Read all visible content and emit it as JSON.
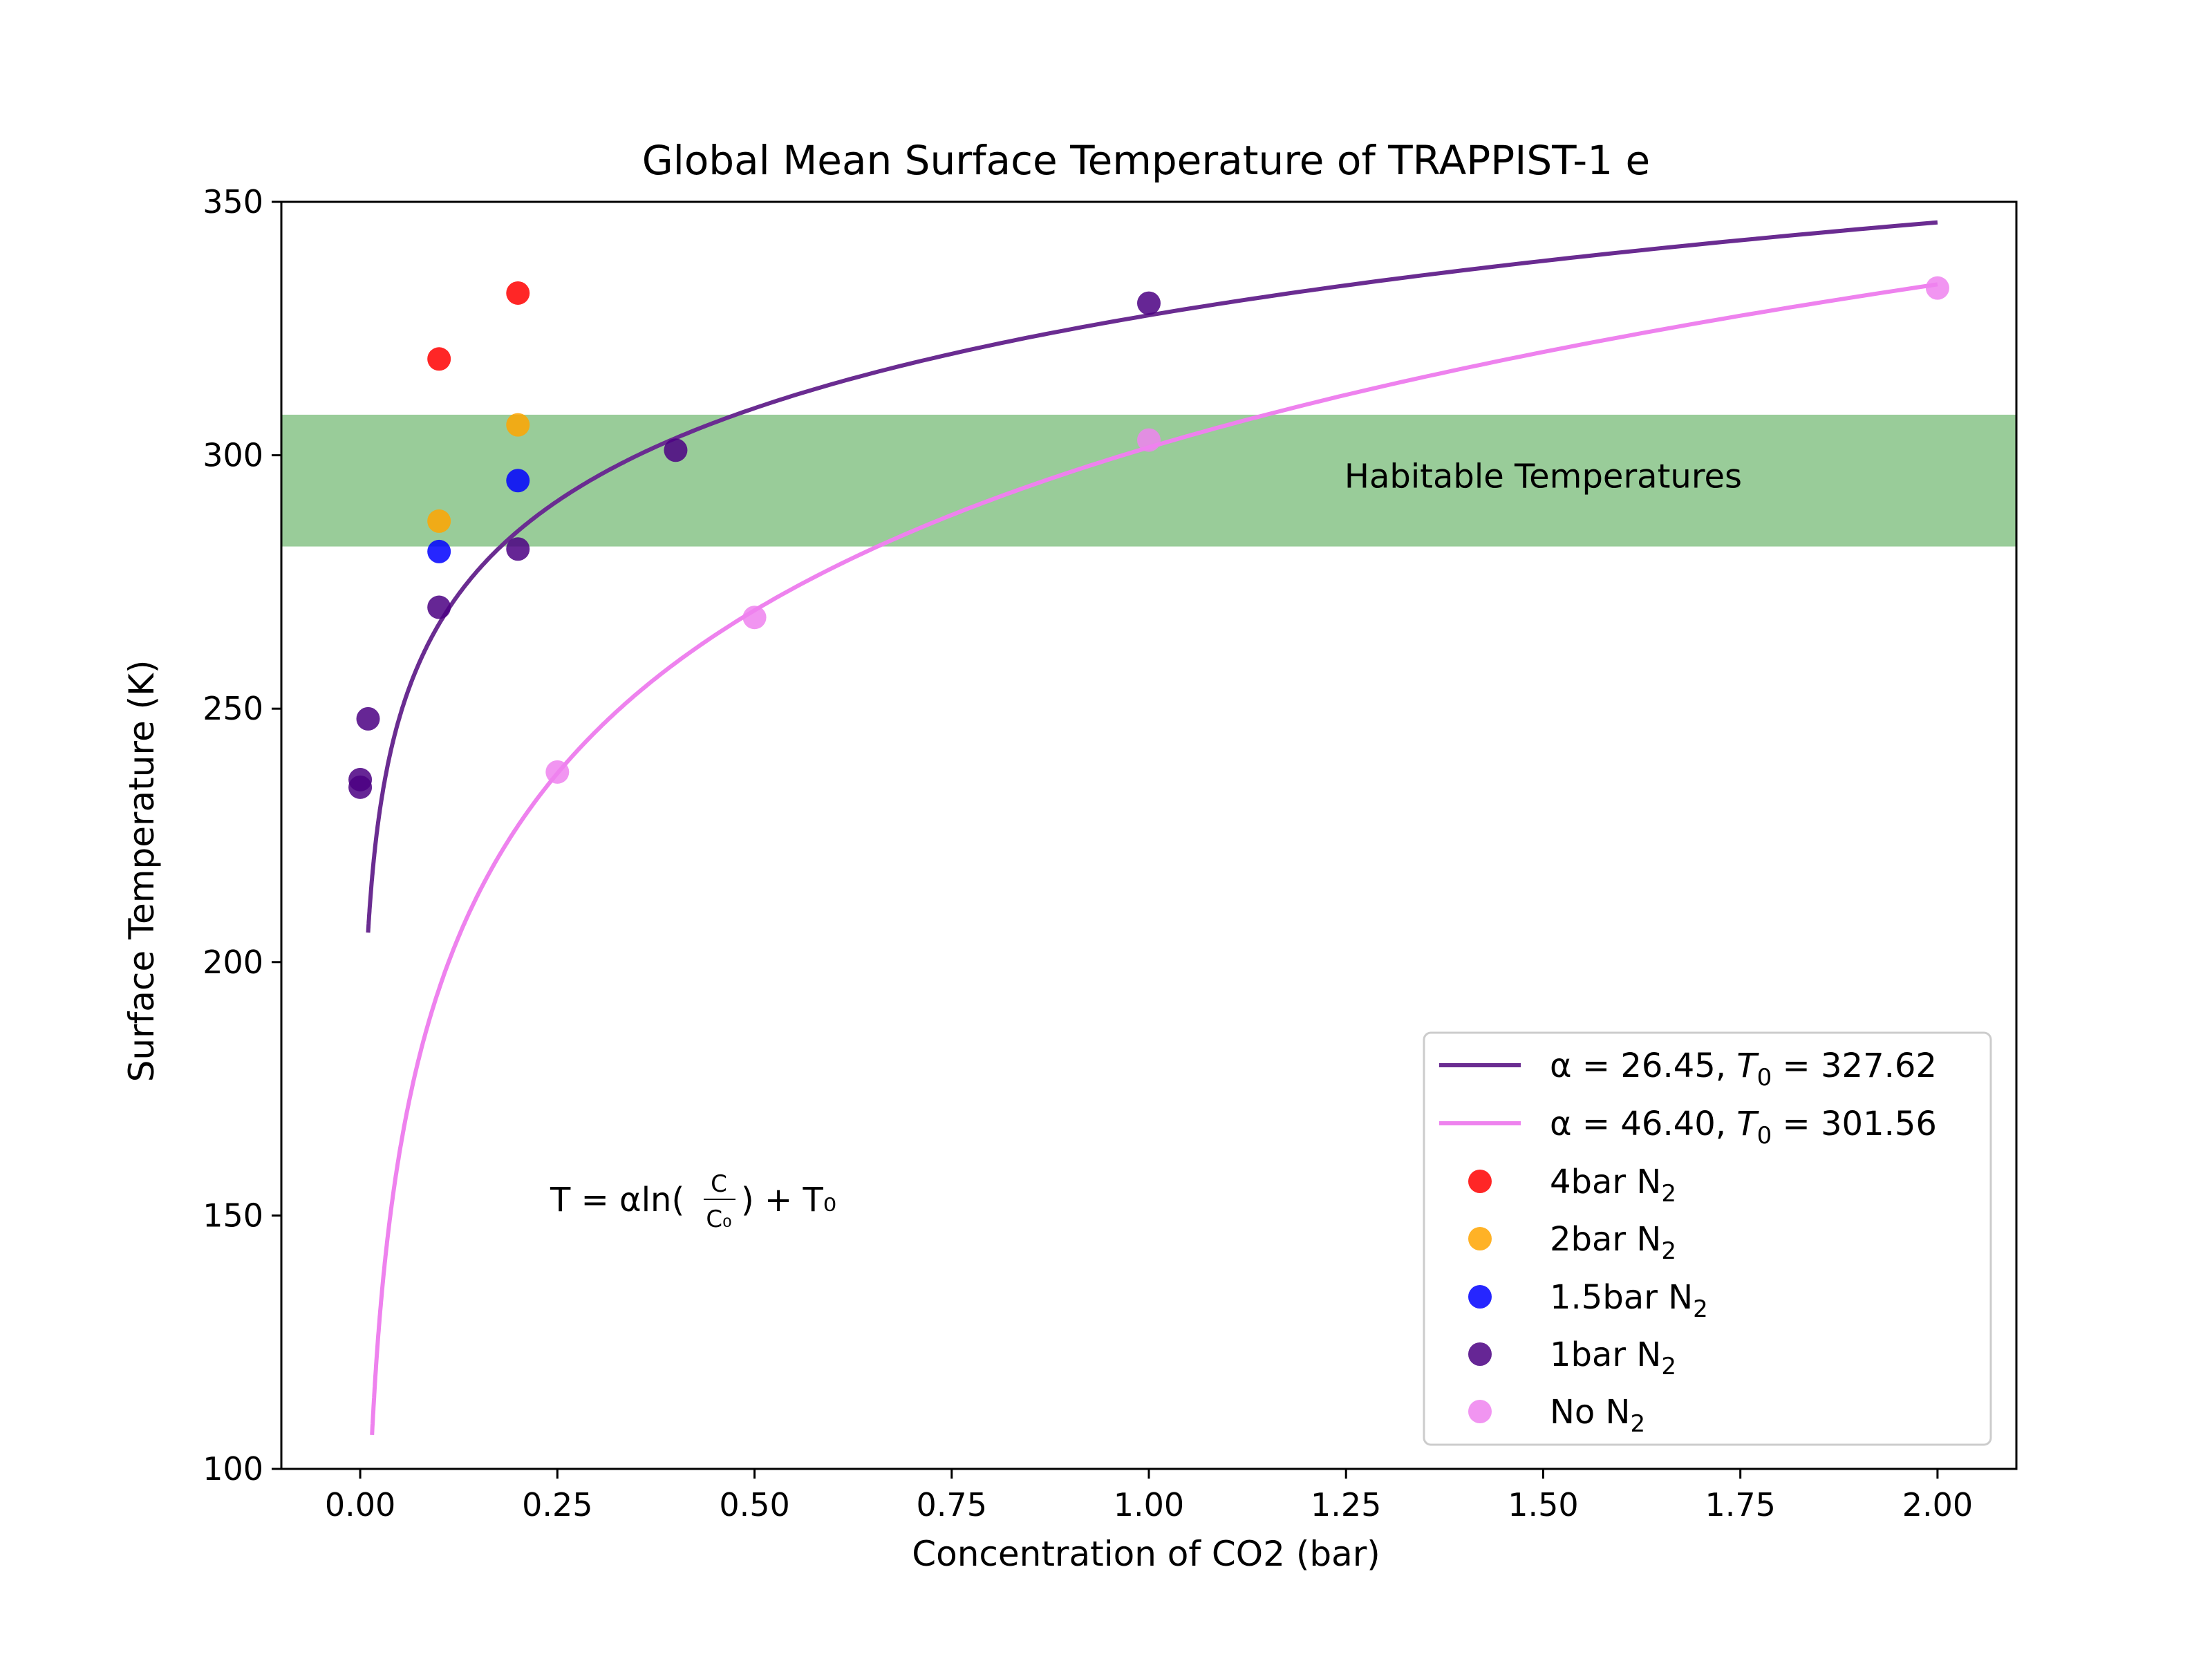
{
  "chart_data": {
    "type": "scatter",
    "title": "Global Mean Surface Temperature of TRAPPIST-1 e",
    "xlabel": "Concentration of CO2 (bar)",
    "ylabel": "Surface Temperature (K)",
    "xlim": [
      -0.1,
      2.1
    ],
    "ylim": [
      100,
      350
    ],
    "xticks": [
      0.0,
      0.25,
      0.5,
      0.75,
      1.0,
      1.25,
      1.5,
      1.75,
      2.0
    ],
    "xtick_labels": [
      "0.00",
      "0.25",
      "0.50",
      "0.75",
      "1.00",
      "1.25",
      "1.50",
      "1.75",
      "2.00"
    ],
    "yticks": [
      100,
      150,
      200,
      250,
      300,
      350
    ],
    "ytick_labels": [
      "100",
      "150",
      "200",
      "250",
      "300",
      "350"
    ],
    "grid": false,
    "legend_position": "bottom-right",
    "habitable_band": {
      "label": "Habitable Temperatures",
      "y_range": [
        282,
        308
      ],
      "color": "#99cc99"
    },
    "annotation": {
      "formula_main": "T = αln(",
      "formula_num": "C",
      "formula_den": "C₀",
      "formula_end": ") + T₀"
    },
    "fits": [
      {
        "legend_alpha": "α = 26.45, ",
        "legend_t": "T",
        "legend_t_sub": "0",
        "legend_value": " = 327.62",
        "alpha": 26.45,
        "t0": 327.62,
        "x_range": [
          0.01,
          2.0
        ],
        "color": "#6a2c91"
      },
      {
        "legend_alpha": "α = 46.40, ",
        "legend_t": "T",
        "legend_t_sub": "0",
        "legend_value": " = 301.56",
        "alpha": 46.4,
        "t0": 301.56,
        "x_range": [
          0.015,
          2.0
        ],
        "color": "#ee82ee"
      }
    ],
    "series": [
      {
        "name_main": "4bar N",
        "name_sub": "2",
        "color": "#ff0000",
        "points": [
          [
            0.1,
            319
          ],
          [
            0.2,
            332
          ]
        ]
      },
      {
        "name_main": "2bar N",
        "name_sub": "2",
        "color": "#ffa500",
        "points": [
          [
            0.1,
            287
          ],
          [
            0.2,
            306
          ]
        ]
      },
      {
        "name_main": "1.5bar N",
        "name_sub": "2",
        "color": "#0000ff",
        "points": [
          [
            0.1,
            281
          ],
          [
            0.2,
            295
          ]
        ]
      },
      {
        "name_main": "1bar N",
        "name_sub": "2",
        "color": "#4b0082",
        "points": [
          [
            0.0,
            236
          ],
          [
            0.0,
            234.5
          ],
          [
            0.01,
            248
          ],
          [
            0.1,
            270
          ],
          [
            0.2,
            281.5
          ],
          [
            0.4,
            301
          ],
          [
            1.0,
            330
          ]
        ]
      },
      {
        "name_main": "No N",
        "name_sub": "2",
        "color": "#ee82ee",
        "points": [
          [
            0.25,
            237.5
          ],
          [
            0.5,
            268
          ],
          [
            1.0,
            303
          ],
          [
            2.0,
            333
          ]
        ]
      }
    ]
  }
}
